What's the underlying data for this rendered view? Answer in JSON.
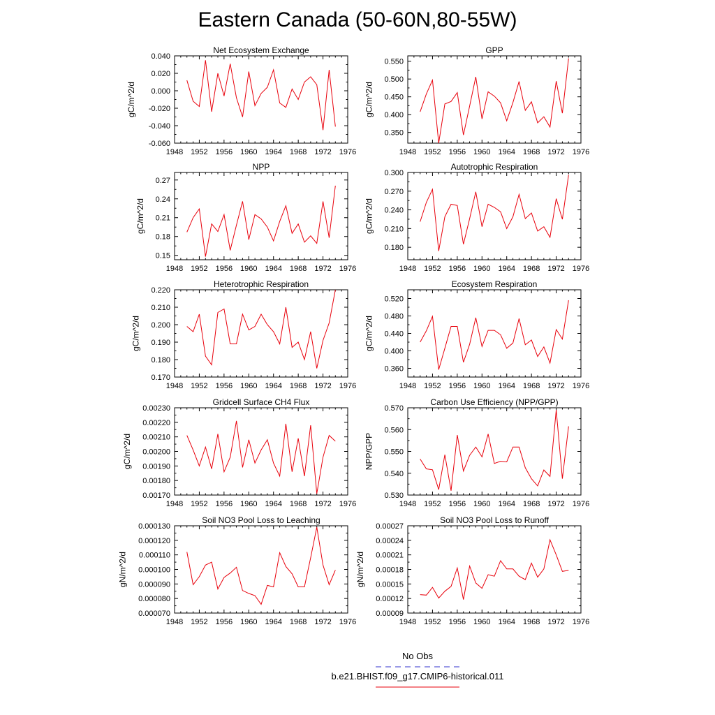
{
  "title": "Eastern Canada (50-60N,80-55W)",
  "colors": {
    "model": "#e8000b",
    "obs": "#3333cc",
    "axis": "#000000"
  },
  "legend": {
    "obs_label": "No Obs",
    "model_label": "b.e21.BHIST.f09_g17.CMIP6-historical.011"
  },
  "chart_data": [
    {
      "type": "line",
      "title": "Net Ecosystem Exchange",
      "ylabel": "gC/m^2/d",
      "xlim": [
        1948,
        1976
      ],
      "xticks": [
        1948,
        1952,
        1956,
        1960,
        1964,
        1968,
        1972,
        1976
      ],
      "ylim": [
        -0.06,
        0.04
      ],
      "yticks": [
        0.04,
        0.02,
        0.0,
        -0.02,
        -0.04,
        -0.06
      ],
      "ytick_labels": [
        "0.040",
        "0.020",
        "0.000",
        "-0.020",
        "-0.040",
        "-0.060"
      ],
      "x": [
        1950,
        1951,
        1952,
        1953,
        1954,
        1955,
        1956,
        1957,
        1958,
        1959,
        1960,
        1961,
        1962,
        1963,
        1964,
        1965,
        1966,
        1967,
        1968,
        1969,
        1970,
        1971,
        1972,
        1973,
        1974
      ],
      "series": [
        {
          "values": [
            0.012,
            -0.012,
            -0.018,
            0.035,
            -0.024,
            0.02,
            -0.006,
            0.031,
            -0.008,
            -0.03,
            0.022,
            -0.017,
            -0.003,
            0.004,
            0.024,
            -0.014,
            -0.019,
            0.002,
            -0.01,
            0.01,
            0.016,
            0.007,
            -0.045,
            0.024,
            -0.041
          ]
        }
      ]
    },
    {
      "type": "line",
      "title": "GPP",
      "ylabel": "gC/m^2/d",
      "xlim": [
        1948,
        1976
      ],
      "xticks": [
        1948,
        1952,
        1956,
        1960,
        1964,
        1968,
        1972,
        1976
      ],
      "ylim": [
        0.32,
        0.565
      ],
      "yticks": [
        0.55,
        0.5,
        0.45,
        0.4,
        0.35
      ],
      "ytick_labels": [
        "0.550",
        "0.500",
        "0.450",
        "0.400",
        "0.350"
      ],
      "x": [
        1950,
        1951,
        1952,
        1953,
        1954,
        1955,
        1956,
        1957,
        1958,
        1959,
        1960,
        1961,
        1962,
        1963,
        1964,
        1965,
        1966,
        1967,
        1968,
        1969,
        1970,
        1971,
        1972,
        1973,
        1974
      ],
      "series": [
        {
          "values": [
            0.408,
            0.458,
            0.497,
            0.32,
            0.43,
            0.437,
            0.462,
            0.343,
            0.424,
            0.506,
            0.388,
            0.464,
            0.452,
            0.433,
            0.383,
            0.434,
            0.493,
            0.412,
            0.436,
            0.377,
            0.394,
            0.365,
            0.494,
            0.404,
            0.558
          ]
        }
      ]
    },
    {
      "type": "line",
      "title": "NPP",
      "ylabel": "gC/m^2/d",
      "xlim": [
        1948,
        1976
      ],
      "xticks": [
        1948,
        1952,
        1956,
        1960,
        1964,
        1968,
        1972,
        1976
      ],
      "ylim": [
        0.143,
        0.282
      ],
      "yticks": [
        0.27,
        0.24,
        0.21,
        0.18,
        0.15
      ],
      "ytick_labels": [
        "0.27",
        "0.24",
        "0.21",
        "0.18",
        "0.15"
      ],
      "x": [
        1950,
        1951,
        1952,
        1953,
        1954,
        1955,
        1956,
        1957,
        1958,
        1959,
        1960,
        1961,
        1962,
        1963,
        1964,
        1965,
        1966,
        1967,
        1968,
        1969,
        1970,
        1971,
        1972,
        1973,
        1974
      ],
      "series": [
        {
          "values": [
            0.187,
            0.21,
            0.224,
            0.148,
            0.2,
            0.188,
            0.215,
            0.158,
            0.198,
            0.236,
            0.175,
            0.215,
            0.208,
            0.195,
            0.173,
            0.204,
            0.229,
            0.185,
            0.2,
            0.171,
            0.181,
            0.169,
            0.236,
            0.178,
            0.261
          ]
        }
      ]
    },
    {
      "type": "line",
      "title": "Autotrophic Respiration",
      "ylabel": "gC/m^2/d",
      "xlim": [
        1948,
        1976
      ],
      "xticks": [
        1948,
        1952,
        1956,
        1960,
        1964,
        1968,
        1972,
        1976
      ],
      "ylim": [
        0.16,
        0.3
      ],
      "yticks": [
        0.3,
        0.27,
        0.24,
        0.21,
        0.18
      ],
      "ytick_labels": [
        "0.300",
        "0.270",
        "0.240",
        "0.210",
        "0.180"
      ],
      "x": [
        1950,
        1951,
        1952,
        1953,
        1954,
        1955,
        1956,
        1957,
        1958,
        1959,
        1960,
        1961,
        1962,
        1963,
        1964,
        1965,
        1966,
        1967,
        1968,
        1969,
        1970,
        1971,
        1972,
        1973,
        1974
      ],
      "series": [
        {
          "values": [
            0.221,
            0.252,
            0.273,
            0.174,
            0.229,
            0.249,
            0.247,
            0.185,
            0.226,
            0.269,
            0.213,
            0.249,
            0.244,
            0.237,
            0.21,
            0.229,
            0.265,
            0.226,
            0.235,
            0.206,
            0.213,
            0.196,
            0.258,
            0.225,
            0.296
          ]
        }
      ]
    },
    {
      "type": "line",
      "title": "Heterotrophic Respiration",
      "ylabel": "gC/m^2/d",
      "xlim": [
        1948,
        1976
      ],
      "xticks": [
        1948,
        1952,
        1956,
        1960,
        1964,
        1968,
        1972,
        1976
      ],
      "ylim": [
        0.17,
        0.22
      ],
      "yticks": [
        0.22,
        0.21,
        0.2,
        0.19,
        0.18,
        0.17
      ],
      "ytick_labels": [
        "0.220",
        "0.210",
        "0.200",
        "0.190",
        "0.180",
        "0.170"
      ],
      "x": [
        1950,
        1951,
        1952,
        1953,
        1954,
        1955,
        1956,
        1957,
        1958,
        1959,
        1960,
        1961,
        1962,
        1963,
        1964,
        1965,
        1966,
        1967,
        1968,
        1969,
        1970,
        1971,
        1972,
        1973,
        1974
      ],
      "series": [
        {
          "values": [
            0.199,
            0.196,
            0.206,
            0.182,
            0.177,
            0.207,
            0.209,
            0.189,
            0.189,
            0.206,
            0.197,
            0.199,
            0.206,
            0.2,
            0.196,
            0.189,
            0.21,
            0.187,
            0.19,
            0.18,
            0.196,
            0.175,
            0.191,
            0.201,
            0.22
          ]
        }
      ]
    },
    {
      "type": "line",
      "title": "Ecosystem Respiration",
      "ylabel": "gC/m^2/d",
      "xlim": [
        1948,
        1976
      ],
      "xticks": [
        1948,
        1952,
        1956,
        1960,
        1964,
        1968,
        1972,
        1976
      ],
      "ylim": [
        0.34,
        0.54
      ],
      "yticks": [
        0.52,
        0.48,
        0.44,
        0.4,
        0.36
      ],
      "ytick_labels": [
        "0.520",
        "0.480",
        "0.440",
        "0.400",
        "0.360"
      ],
      "x": [
        1950,
        1951,
        1952,
        1953,
        1954,
        1955,
        1956,
        1957,
        1958,
        1959,
        1960,
        1961,
        1962,
        1963,
        1964,
        1965,
        1966,
        1967,
        1968,
        1969,
        1970,
        1971,
        1972,
        1973,
        1974
      ],
      "series": [
        {
          "values": [
            0.42,
            0.446,
            0.479,
            0.357,
            0.406,
            0.456,
            0.456,
            0.374,
            0.415,
            0.476,
            0.41,
            0.447,
            0.447,
            0.437,
            0.406,
            0.418,
            0.474,
            0.414,
            0.425,
            0.387,
            0.409,
            0.372,
            0.449,
            0.427,
            0.516
          ]
        }
      ]
    },
    {
      "type": "line",
      "title": "Gridcell Surface CH4 Flux",
      "ylabel": "gC/m^2/d",
      "xlim": [
        1948,
        1976
      ],
      "xticks": [
        1948,
        1952,
        1956,
        1960,
        1964,
        1968,
        1972,
        1976
      ],
      "ylim": [
        0.0017,
        0.0023
      ],
      "yticks": [
        0.0023,
        0.0022,
        0.0021,
        0.002,
        0.0019,
        0.0018,
        0.0017
      ],
      "ytick_labels": [
        "0.00230",
        "0.00220",
        "0.00210",
        "0.00200",
        "0.00190",
        "0.00180",
        "0.00170"
      ],
      "x": [
        1950,
        1951,
        1952,
        1953,
        1954,
        1955,
        1956,
        1957,
        1958,
        1959,
        1960,
        1961,
        1962,
        1963,
        1964,
        1965,
        1966,
        1967,
        1968,
        1969,
        1970,
        1971,
        1972,
        1973,
        1974
      ],
      "series": [
        {
          "values": [
            0.00211,
            0.00201,
            0.0019,
            0.00203,
            0.00188,
            0.00212,
            0.00186,
            0.00196,
            0.00221,
            0.00189,
            0.00208,
            0.00192,
            0.00201,
            0.00208,
            0.00192,
            0.00183,
            0.00219,
            0.00186,
            0.00209,
            0.00183,
            0.00218,
            0.00171,
            0.00196,
            0.00211,
            0.00207
          ]
        }
      ]
    },
    {
      "type": "line",
      "title": "Carbon Use Efficiency (NPP/GPP)",
      "ylabel": "NPP/GPP",
      "xlim": [
        1948,
        1976
      ],
      "xticks": [
        1948,
        1952,
        1956,
        1960,
        1964,
        1968,
        1972,
        1976
      ],
      "ylim": [
        0.53,
        0.57
      ],
      "yticks": [
        0.57,
        0.56,
        0.55,
        0.54,
        0.53
      ],
      "ytick_labels": [
        "0.570",
        "0.560",
        "0.550",
        "0.540",
        "0.530"
      ],
      "x": [
        1950,
        1951,
        1952,
        1953,
        1954,
        1955,
        1956,
        1957,
        1958,
        1959,
        1960,
        1961,
        1962,
        1963,
        1964,
        1965,
        1966,
        1967,
        1968,
        1969,
        1970,
        1971,
        1972,
        1973,
        1974
      ],
      "series": [
        {
          "values": [
            0.5465,
            0.542,
            0.5416,
            0.5325,
            0.5485,
            0.532,
            0.5575,
            0.541,
            0.5482,
            0.552,
            0.5475,
            0.558,
            0.5445,
            0.5455,
            0.5452,
            0.552,
            0.552,
            0.5425,
            0.5375,
            0.5342,
            0.5415,
            0.5385,
            0.569,
            0.5375,
            0.5615
          ]
        }
      ]
    },
    {
      "type": "line",
      "title": "Soil NO3 Pool Loss to Leaching",
      "ylabel": "gN/m^2/d",
      "xlim": [
        1948,
        1976
      ],
      "xticks": [
        1948,
        1952,
        1956,
        1960,
        1964,
        1968,
        1972,
        1976
      ],
      "ylim": [
        7e-05,
        0.00013
      ],
      "yticks": [
        0.00013,
        0.00012,
        0.00011,
        0.0001,
        9e-05,
        8e-05,
        7e-05
      ],
      "ytick_labels": [
        "0.000130",
        "0.000120",
        "0.000110",
        "0.000100",
        "0.000090",
        "0.000080",
        "0.000070"
      ],
      "x": [
        1950,
        1951,
        1952,
        1953,
        1954,
        1955,
        1956,
        1957,
        1958,
        1959,
        1960,
        1961,
        1962,
        1963,
        1964,
        1965,
        1966,
        1967,
        1968,
        1969,
        1970,
        1971,
        1972,
        1973,
        1974
      ],
      "series": [
        {
          "values": [
            0.000112,
            8.95e-05,
            9.5e-05,
            0.000103,
            0.000105,
            8.65e-05,
            9.45e-05,
            9.75e-05,
            0.0001015,
            8.55e-05,
            8.35e-05,
            8.2e-05,
            7.6e-05,
            8.9e-05,
            8.8e-05,
            0.0001115,
            0.000102,
            9.7e-05,
            8.8e-05,
            8.8e-05,
            0.000108,
            0.000129,
            0.000103,
            8.95e-05,
            9.95e-05
          ]
        }
      ]
    },
    {
      "type": "line",
      "title": "Soil NO3 Pool Loss to Runoff",
      "ylabel": "gN/m^2/d",
      "xlim": [
        1948,
        1976
      ],
      "xticks": [
        1948,
        1952,
        1956,
        1960,
        1964,
        1968,
        1972,
        1976
      ],
      "ylim": [
        9e-05,
        0.00027
      ],
      "yticks": [
        0.00027,
        0.00024,
        0.00021,
        0.00018,
        0.00015,
        0.00012,
        9e-05
      ],
      "ytick_labels": [
        "0.00027",
        "0.00024",
        "0.00021",
        "0.00018",
        "0.00015",
        "0.00012",
        "0.00009"
      ],
      "x": [
        1950,
        1951,
        1952,
        1953,
        1954,
        1955,
        1956,
        1957,
        1958,
        1959,
        1960,
        1961,
        1962,
        1963,
        1964,
        1965,
        1966,
        1967,
        1968,
        1969,
        1970,
        1971,
        1972,
        1973,
        1974
      ],
      "series": [
        {
          "values": [
            0.000128,
            0.000127,
            0.000143,
            0.000121,
            0.000135,
            0.000145,
            0.000183,
            0.000118,
            0.000187,
            0.000152,
            0.000141,
            0.000169,
            0.000166,
            0.000198,
            0.000181,
            0.000181,
            0.000166,
            0.000159,
            0.000193,
            0.000164,
            0.000181,
            0.000241,
            0.00021,
            0.000176,
            0.000178
          ]
        }
      ]
    }
  ]
}
